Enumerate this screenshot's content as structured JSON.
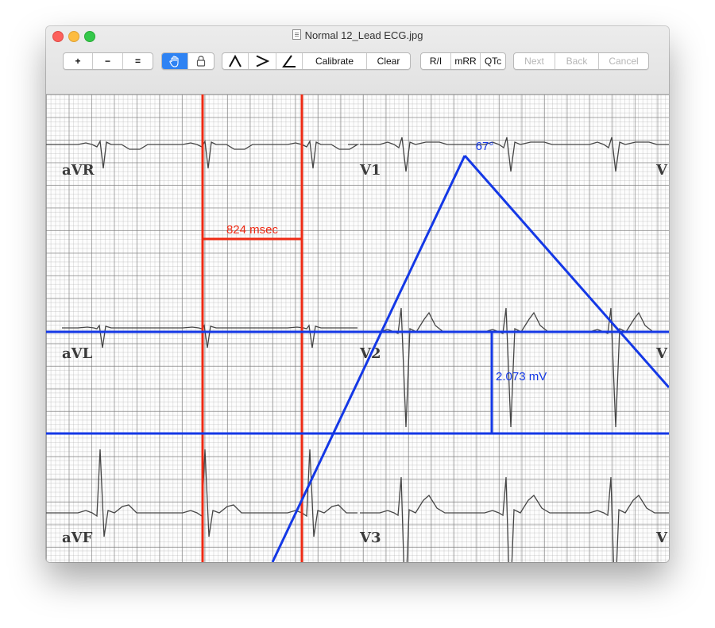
{
  "window": {
    "title": "Normal 12_Lead ECG.jpg"
  },
  "toolbar": {
    "zoom_in": "+",
    "zoom_out": "−",
    "zoom_reset": "=",
    "pan_icon": "hand-icon",
    "lock_icon": "lock-icon",
    "tool_angle_up": "⋀",
    "tool_angle_right": ">",
    "tool_angle": "∠",
    "calibrate": "Calibrate",
    "clear": "Clear",
    "rate_interval": "R/I",
    "mean_rr": "mRR",
    "qtc": "QTc",
    "next": "Next",
    "back": "Back",
    "cancel": "Cancel"
  },
  "ecg": {
    "leads": [
      "aVR",
      "V1",
      "aVL",
      "V2",
      "aVF",
      "V3"
    ],
    "measurements": {
      "interval": "824 msec",
      "amplitude": "2.073 mV",
      "angle": "67°"
    },
    "colors": {
      "time_caliper": "#ee2a14",
      "amplitude_caliper": "#1438e6",
      "trace": "#454545"
    }
  }
}
